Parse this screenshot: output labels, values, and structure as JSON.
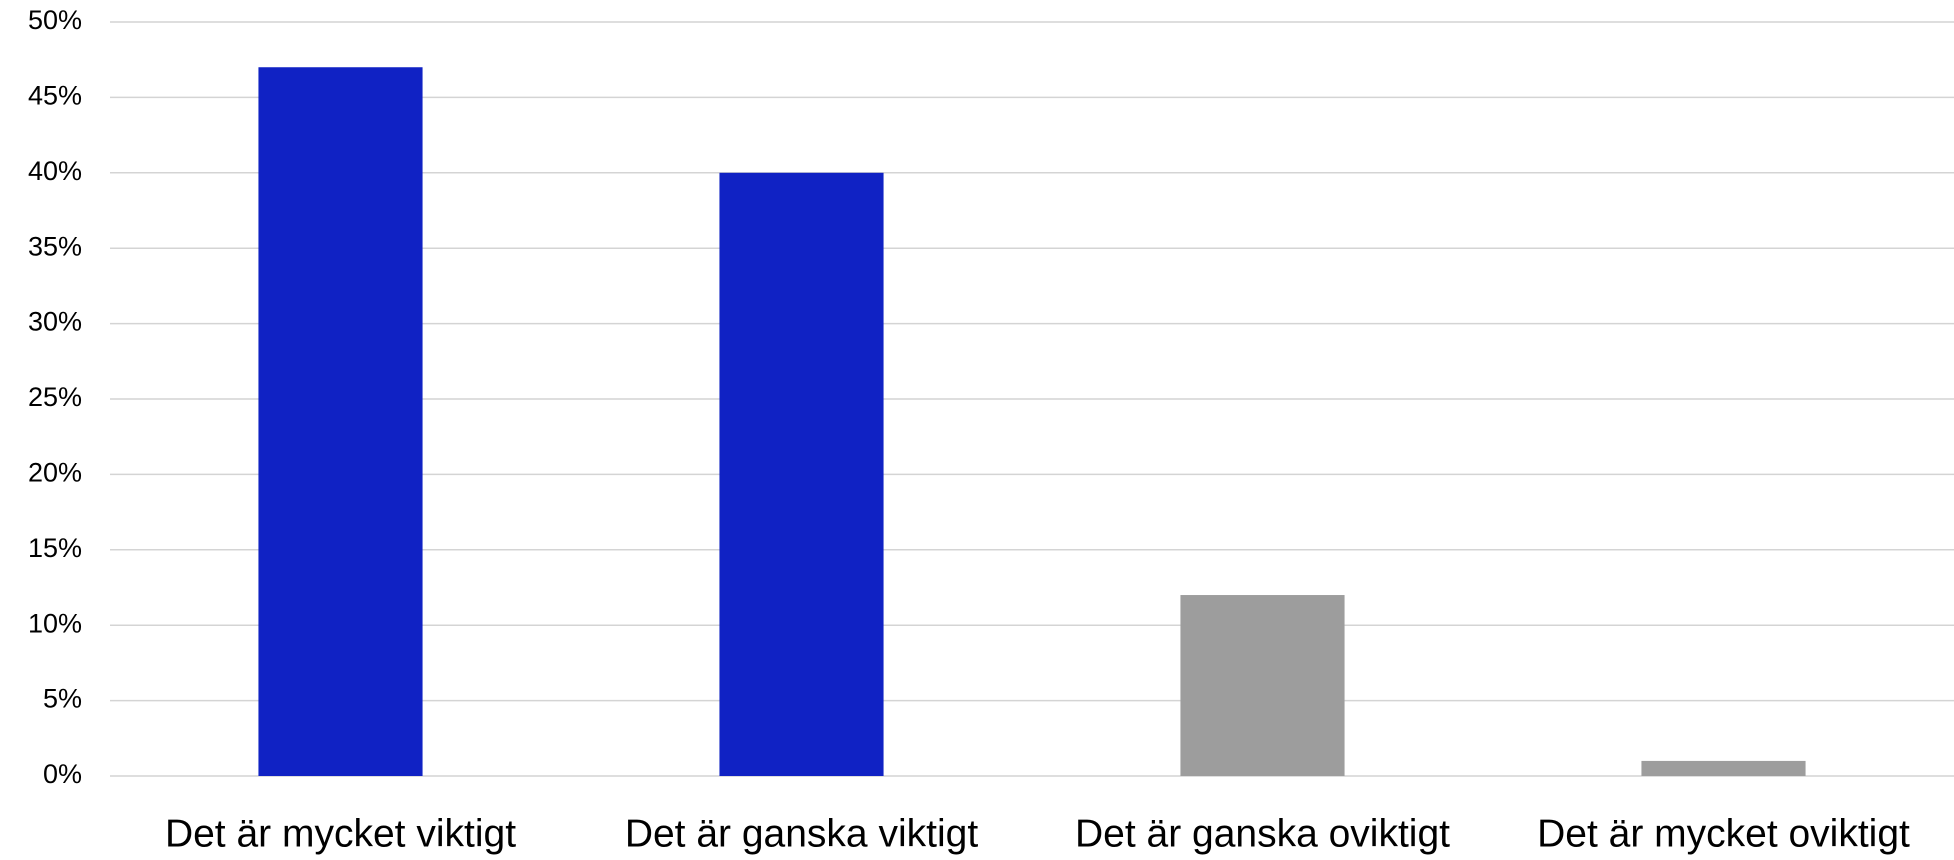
{
  "chart_data": {
    "type": "bar",
    "categories": [
      "Det är mycket viktigt",
      "Det är ganska viktigt",
      "Det är ganska oviktigt",
      "Det är mycket oviktigt"
    ],
    "values": [
      47,
      40,
      12,
      1
    ],
    "colors": [
      "#1022c4",
      "#1022c4",
      "#9d9d9d",
      "#9d9d9d"
    ],
    "ylim": [
      0,
      50
    ],
    "yticks": [
      {
        "value": 0,
        "label": "0%"
      },
      {
        "value": 5,
        "label": "5%"
      },
      {
        "value": 10,
        "label": "10%"
      },
      {
        "value": 15,
        "label": "15%"
      },
      {
        "value": 20,
        "label": "20%"
      },
      {
        "value": 25,
        "label": "25%"
      },
      {
        "value": 30,
        "label": "30%"
      },
      {
        "value": 35,
        "label": "35%"
      },
      {
        "value": 40,
        "label": "40%"
      },
      {
        "value": 45,
        "label": "45%"
      },
      {
        "value": 50,
        "label": "50%"
      }
    ],
    "grid": true
  }
}
